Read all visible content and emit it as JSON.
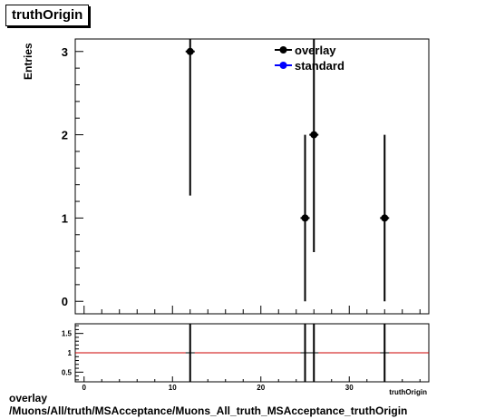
{
  "page_title": "truthOrigin",
  "caption_line1": "overlay",
  "caption_line2": "/Muons/All/truth/MSAcceptance/Muons_All_truth_MSAcceptance_truthOrigin",
  "chart_data": [
    {
      "type": "scatter",
      "title": "truthOrigin",
      "xlabel": "",
      "ylabel": "Entries",
      "xlim": [
        -1,
        39
      ],
      "ylim": [
        -0.15,
        3.15
      ],
      "yticks": [
        0,
        1,
        2,
        3
      ],
      "legend_position": "top-right",
      "series": [
        {
          "name": "overlay",
          "color": "#000000",
          "points": [
            {
              "x": 12,
              "y": 3,
              "ylo": 1.27,
              "yhi": 3.15
            },
            {
              "x": 25,
              "y": 1,
              "ylo": 0,
              "yhi": 2
            },
            {
              "x": 26,
              "y": 2,
              "ylo": 0.59,
              "yhi": 3.15
            },
            {
              "x": 34,
              "y": 1,
              "ylo": 0,
              "yhi": 2
            }
          ]
        },
        {
          "name": "standard",
          "color": "#0000ff",
          "points": []
        }
      ]
    },
    {
      "type": "line",
      "title": "",
      "xlabel": "truthOrigin",
      "ylabel": "",
      "xlim": [
        -1,
        39
      ],
      "ylim": [
        0.25,
        1.75
      ],
      "xticks": [
        0,
        10,
        20,
        30
      ],
      "yticks": [
        0.5,
        1,
        1.5
      ],
      "ytick_labels": [
        "0.5",
        "1",
        "1.5"
      ],
      "reference_line": {
        "y": 1,
        "color": "#cc0000"
      },
      "error_bars_x": [
        12,
        25,
        26,
        34
      ]
    }
  ]
}
